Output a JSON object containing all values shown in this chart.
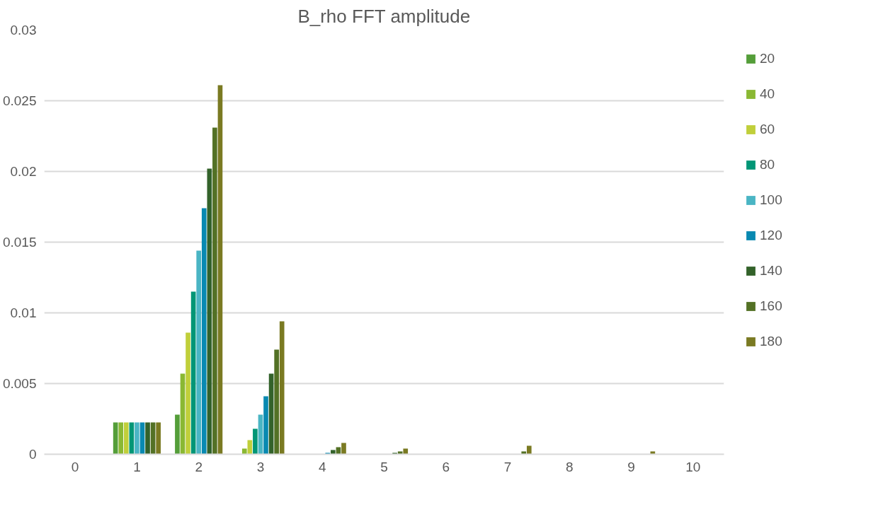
{
  "chart_data": {
    "type": "bar",
    "title": "B_rho FFT amplitude",
    "categories": [
      "0",
      "1",
      "2",
      "3",
      "4",
      "5",
      "6",
      "7",
      "8",
      "9",
      "10"
    ],
    "series": [
      {
        "name": "20",
        "color": "#549e39",
        "values": [
          0,
          0.00225,
          0.0028,
          0,
          0,
          0,
          0,
          0,
          0,
          0,
          0
        ]
      },
      {
        "name": "40",
        "color": "#8ab833",
        "values": [
          0,
          0.00225,
          0.0057,
          0.0004,
          0,
          0,
          0,
          0,
          0,
          0,
          0
        ]
      },
      {
        "name": "60",
        "color": "#c0cf3a",
        "values": [
          0,
          0.00225,
          0.0086,
          0.001,
          0,
          0,
          0,
          0,
          0,
          0,
          0
        ]
      },
      {
        "name": "80",
        "color": "#029676",
        "values": [
          0,
          0.00225,
          0.0115,
          0.0018,
          0,
          0,
          0,
          0,
          0,
          0,
          0
        ]
      },
      {
        "name": "100",
        "color": "#4ab5c4",
        "values": [
          0,
          0.00225,
          0.0144,
          0.0028,
          0,
          0,
          0,
          0,
          0,
          0,
          0
        ]
      },
      {
        "name": "120",
        "color": "#0989b1",
        "values": [
          0,
          0.00225,
          0.0174,
          0.0041,
          0.0001,
          0,
          0,
          0,
          0,
          0,
          0
        ]
      },
      {
        "name": "140",
        "color": "#33622a",
        "values": [
          0,
          0.00225,
          0.0202,
          0.0057,
          0.0003,
          0.0001,
          0,
          0,
          0,
          0,
          0
        ]
      },
      {
        "name": "160",
        "color": "#537125",
        "values": [
          0,
          0.00225,
          0.0231,
          0.0074,
          0.0005,
          0.0002,
          0,
          0.0002,
          0,
          0,
          0
        ]
      },
      {
        "name": "180",
        "color": "#7a7a22",
        "values": [
          0,
          0.00225,
          0.0261,
          0.0094,
          0.0008,
          0.0004,
          0,
          0.0006,
          0,
          0.0002,
          0
        ]
      }
    ],
    "ylim": [
      0,
      0.03
    ],
    "yticks": [
      0,
      0.005,
      0.01,
      0.015,
      0.02,
      0.025,
      0.03
    ],
    "grid": "y",
    "legend": "right"
  }
}
